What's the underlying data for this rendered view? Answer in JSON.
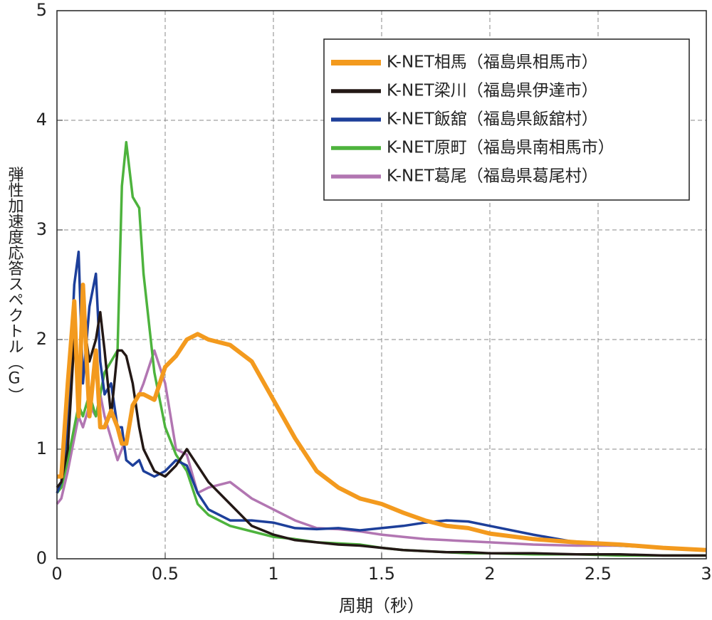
{
  "chart_data": {
    "type": "line",
    "x_label": "周期（秒）",
    "y_label": "弾性加速度応答スペクトル（G）",
    "xlim": [
      0,
      3
    ],
    "xticks": [
      0,
      0.5,
      1,
      1.5,
      2,
      2.5,
      3
    ],
    "ylim": [
      0,
      5
    ],
    "yticks": [
      0,
      1,
      2,
      3,
      4,
      5
    ],
    "grid": true,
    "legend": "upper right",
    "x": [
      0,
      0.02,
      0.05,
      0.08,
      0.1,
      0.12,
      0.15,
      0.18,
      0.2,
      0.22,
      0.25,
      0.28,
      0.3,
      0.32,
      0.35,
      0.38,
      0.4,
      0.45,
      0.5,
      0.55,
      0.6,
      0.65,
      0.7,
      0.8,
      0.9,
      1.0,
      1.1,
      1.2,
      1.3,
      1.4,
      1.5,
      1.6,
      1.7,
      1.8,
      1.9,
      2.0,
      2.2,
      2.4,
      2.6,
      2.8,
      3.0
    ],
    "series": [
      {
        "name": "K-NET相馬（福島県相馬市）",
        "color": "#f39a1e",
        "width": 6,
        "values": [
          0.75,
          0.75,
          1.6,
          2.35,
          1.3,
          2.5,
          1.3,
          1.9,
          1.2,
          1.2,
          1.35,
          1.2,
          1.05,
          1.05,
          1.4,
          1.5,
          1.5,
          1.45,
          1.75,
          1.85,
          2.0,
          2.05,
          2.0,
          1.95,
          1.8,
          1.45,
          1.1,
          0.8,
          0.65,
          0.55,
          0.5,
          0.42,
          0.35,
          0.3,
          0.28,
          0.23,
          0.18,
          0.15,
          0.13,
          0.1,
          0.08
        ]
      },
      {
        "name": "K-NET梁川（福島県伊達市）",
        "color": "#231815",
        "width": 3.5,
        "values": [
          0.65,
          0.7,
          1.0,
          2.0,
          1.6,
          2.2,
          1.8,
          2.0,
          2.25,
          1.9,
          1.3,
          1.9,
          1.9,
          1.85,
          1.6,
          1.2,
          1.0,
          0.8,
          0.75,
          0.85,
          1.0,
          0.85,
          0.7,
          0.5,
          0.3,
          0.22,
          0.17,
          0.15,
          0.13,
          0.12,
          0.1,
          0.08,
          0.07,
          0.06,
          0.06,
          0.05,
          0.05,
          0.04,
          0.04,
          0.03,
          0.03
        ]
      },
      {
        "name": "K-NET飯舘（福島県飯舘村）",
        "color": "#1d3f9a",
        "width": 3.5,
        "values": [
          0.6,
          0.7,
          1.2,
          2.5,
          2.8,
          1.6,
          2.3,
          2.6,
          1.8,
          1.5,
          1.6,
          1.2,
          1.2,
          0.9,
          0.85,
          0.9,
          0.8,
          0.75,
          0.8,
          0.9,
          0.85,
          0.6,
          0.45,
          0.35,
          0.35,
          0.33,
          0.28,
          0.27,
          0.28,
          0.26,
          0.28,
          0.3,
          0.33,
          0.35,
          0.34,
          0.3,
          0.22,
          0.15,
          0.12,
          0.1,
          0.08
        ]
      },
      {
        "name": "K-NET原町（福島県南相馬市）",
        "color": "#4db33d",
        "width": 3.5,
        "values": [
          0.6,
          0.65,
          0.9,
          1.2,
          1.4,
          1.3,
          1.5,
          1.3,
          1.5,
          1.7,
          1.8,
          1.9,
          3.4,
          3.8,
          3.3,
          3.2,
          2.6,
          1.7,
          1.2,
          0.95,
          0.8,
          0.5,
          0.4,
          0.3,
          0.25,
          0.2,
          0.18,
          0.15,
          0.14,
          0.13,
          0.1,
          0.08,
          0.07,
          0.06,
          0.05,
          0.05,
          0.04,
          0.04,
          0.03,
          0.03,
          0.03
        ]
      },
      {
        "name": "K-NET葛尾（福島県葛尾村）",
        "color": "#b276b2",
        "width": 3.5,
        "values": [
          0.5,
          0.55,
          0.8,
          1.1,
          1.3,
          1.2,
          1.4,
          1.3,
          1.5,
          1.3,
          1.1,
          0.9,
          1.0,
          1.1,
          1.4,
          1.5,
          1.6,
          1.9,
          1.6,
          1.0,
          0.95,
          0.6,
          0.65,
          0.7,
          0.55,
          0.45,
          0.35,
          0.28,
          0.27,
          0.25,
          0.22,
          0.2,
          0.18,
          0.17,
          0.16,
          0.15,
          0.13,
          0.12,
          0.12,
          0.1,
          0.08
        ]
      }
    ]
  }
}
